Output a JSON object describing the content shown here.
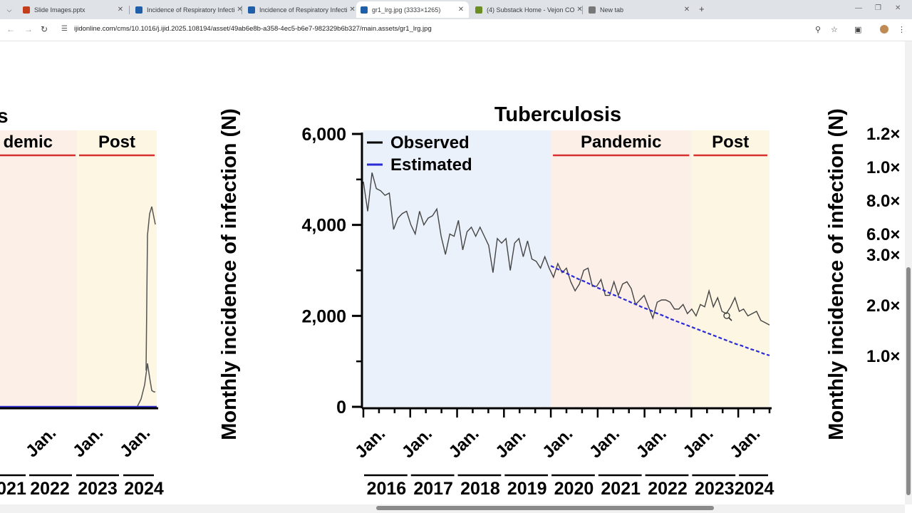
{
  "browser": {
    "tabs": [
      {
        "title": "Slide Images.pptx",
        "icon": "powerpoint-icon",
        "color": "#c43e1c",
        "active": false
      },
      {
        "title": "Incidence of Respiratory Infecti",
        "icon": "journal-icon",
        "color": "#1f5ea8",
        "active": false
      },
      {
        "title": "Incidence of Respiratory Infecti",
        "icon": "journal-icon",
        "color": "#1f5ea8",
        "active": false
      },
      {
        "title": "gr1_lrg.jpg (3333×1265)",
        "icon": "journal-icon",
        "color": "#1f5ea8",
        "active": true
      },
      {
        "title": "(4) Substack Home - Vejon CO",
        "icon": "substack-icon",
        "color": "#6b8e23",
        "active": false
      },
      {
        "title": "New tab",
        "icon": "chrome-icon",
        "color": "#777777",
        "active": false
      }
    ],
    "url": "ijidonline.com/cms/10.1016/j.ijid.2025.108194/asset/49ab6e8b-a358-4ec5-b6e7-982329b6b327/main.assets/gr1_lrg.jpg"
  },
  "figure": {
    "left_panel": {
      "title_fragment": "s",
      "period_labels": [
        "demic",
        "Post"
      ],
      "x_ticks": [
        "Jan.",
        "Jan.",
        "Jan."
      ],
      "year_labels": [
        "021",
        "2022",
        "2023",
        "2024"
      ]
    },
    "y_axis_label": "Monthly incidence of infection (N)",
    "right_panel": {
      "y_axis_label": "Monthly incidence of infection (N)",
      "tick_fragments": [
        "1.2×",
        "1.0×",
        "8.0×",
        "6.0×",
        "3.0×",
        "2.0×",
        "1.0×"
      ]
    }
  },
  "chart_data": {
    "type": "line",
    "title": "Tuberculosis",
    "ylabel": "Monthly incidence of infection (N)",
    "ylim": [
      0,
      6000
    ],
    "y_ticks": [
      "0",
      "2,000",
      "4,000",
      "6,000"
    ],
    "x_tick_labels": [
      "Jan.",
      "Jan.",
      "Jan.",
      "Jan.",
      "Jan.",
      "Jan.",
      "Jan.",
      "Jan.",
      "Jan."
    ],
    "year_labels": [
      "2016",
      "2017",
      "2018",
      "2019",
      "2020",
      "2021",
      "2022",
      "2023",
      "2024"
    ],
    "periods": [
      {
        "label": "",
        "start_month": 0,
        "end_month": 48,
        "color": "#eaf1fa"
      },
      {
        "label": "Pandemic",
        "start_month": 48,
        "end_month": 84,
        "color": "#fbefe7"
      },
      {
        "label": "Post",
        "start_month": 84,
        "end_month": 104,
        "color": "#fdf6e3"
      }
    ],
    "legend": [
      "Observed",
      "Estimated"
    ],
    "legend_position": "top-left",
    "series": [
      {
        "name": "Observed",
        "color": "#444444",
        "style": "solid",
        "values": [
          4950,
          4300,
          5150,
          4800,
          4750,
          4650,
          4700,
          3900,
          4150,
          4250,
          4300,
          4000,
          3800,
          4300,
          4000,
          4150,
          4200,
          4350,
          3750,
          3350,
          3800,
          3750,
          4100,
          3450,
          3850,
          3950,
          3750,
          3950,
          3750,
          3550,
          2950,
          3700,
          3600,
          3700,
          3000,
          3600,
          3700,
          3300,
          3650,
          3250,
          3200,
          3050,
          3300,
          3050,
          2850,
          3150,
          2950,
          3050,
          2750,
          2550,
          2700,
          3000,
          3050,
          2650,
          2650,
          2800,
          2450,
          2450,
          2750,
          2450,
          2700,
          2750,
          2600,
          2250,
          2350,
          2450,
          2200,
          1950,
          2300,
          2350,
          2350,
          2300,
          2150,
          2150,
          2250,
          2050,
          2150,
          2000,
          2250,
          2200,
          2550,
          2200,
          2400,
          2100,
          2050,
          2200,
          2400,
          2100,
          2150,
          2000,
          2050,
          2100,
          1900,
          1850,
          1800
        ]
      },
      {
        "name": "Estimated",
        "color": "#2b2bd6",
        "style": "dashed",
        "values": [
          3100,
          3050,
          3000,
          2950,
          2900,
          2850,
          2800,
          2760,
          2710,
          2660,
          2610,
          2570,
          2520,
          2470,
          2430,
          2380,
          2340,
          2290,
          2250,
          2200,
          2160,
          2120,
          2070,
          2030,
          1990,
          1940,
          1900,
          1860,
          1820,
          1780,
          1740,
          1700,
          1660,
          1620,
          1580,
          1540,
          1500,
          1460,
          1420,
          1380,
          1350,
          1310,
          1270,
          1240,
          1200,
          1160,
          1130
        ]
      }
    ],
    "estimated_start_month": 48
  }
}
